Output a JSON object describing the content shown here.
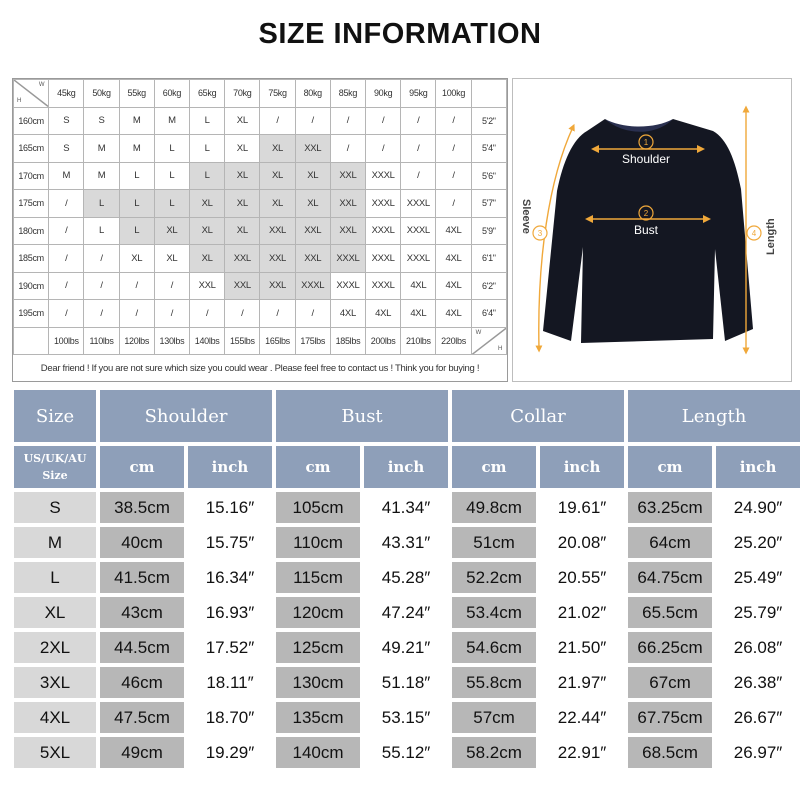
{
  "title": "SIZE INFORMATION",
  "grid": {
    "corner_h": "H",
    "corner_w": "W",
    "weights_kg": [
      "45kg",
      "50kg",
      "55kg",
      "60kg",
      "65kg",
      "70kg",
      "75kg",
      "80kg",
      "85kg",
      "90kg",
      "95kg",
      "100kg"
    ],
    "weights_lbs": [
      "100lbs",
      "110lbs",
      "120lbs",
      "130lbs",
      "140lbs",
      "155lbs",
      "165lbs",
      "175lbs",
      "185lbs",
      "200lbs",
      "210lbs",
      "220lbs"
    ],
    "rows": [
      {
        "cm": "160cm",
        "ft": "5'2\"",
        "cells": [
          "S",
          "S",
          "M",
          "M",
          "L",
          "XL",
          "/",
          "/",
          "/",
          "/",
          "/",
          "/"
        ]
      },
      {
        "cm": "165cm",
        "ft": "5'4\"",
        "cells": [
          "S",
          "M",
          "M",
          "L",
          "L",
          "XL",
          "XL",
          "XXL",
          "/",
          "/",
          "/",
          "/"
        ]
      },
      {
        "cm": "170cm",
        "ft": "5'6\"",
        "cells": [
          "M",
          "M",
          "L",
          "L",
          "L",
          "XL",
          "XL",
          "XL",
          "XXL",
          "XXXL",
          "/",
          "/"
        ]
      },
      {
        "cm": "175cm",
        "ft": "5'7\"",
        "cells": [
          "/",
          "L",
          "L",
          "L",
          "XL",
          "XL",
          "XL",
          "XL",
          "XXL",
          "XXXL",
          "XXXL",
          "/"
        ]
      },
      {
        "cm": "180cm",
        "ft": "5'9\"",
        "cells": [
          "/",
          "L",
          "L",
          "XL",
          "XL",
          "XL",
          "XXL",
          "XXL",
          "XXL",
          "XXXL",
          "XXXL",
          "4XL"
        ]
      },
      {
        "cm": "185cm",
        "ft": "6'1\"",
        "cells": [
          "/",
          "/",
          "XL",
          "XL",
          "XL",
          "XXL",
          "XXL",
          "XXL",
          "XXXL",
          "XXXL",
          "XXXL",
          "4XL"
        ]
      },
      {
        "cm": "190cm",
        "ft": "6'2\"",
        "cells": [
          "/",
          "/",
          "/",
          "/",
          "XXL",
          "XXL",
          "XXL",
          "XXXL",
          "XXXL",
          "XXXL",
          "4XL",
          "4XL"
        ]
      },
      {
        "cm": "195cm",
        "ft": "6'4\"",
        "cells": [
          "/",
          "/",
          "/",
          "/",
          "/",
          "/",
          "/",
          "/",
          "4XL",
          "4XL",
          "4XL",
          "4XL"
        ]
      }
    ],
    "note": "Dear friend ! If you are not sure which size you could wear . Please feel free to contact us ! Think you for buying !"
  },
  "diagram": {
    "shoulder_num": "1",
    "shoulder_label": "Shoulder",
    "bust_num": "2",
    "bust_label": "Bust",
    "sleeve_num": "3",
    "sleeve_label": "Sleeve",
    "length_num": "4",
    "length_label": "Length",
    "garment_color": "#141722",
    "arrow_color": "#f0a83a"
  },
  "size_table": {
    "headers": {
      "size": "Size",
      "shoulder": "Shoulder",
      "bust": "Bust",
      "collar": "Collar",
      "length": "Length",
      "region_line1": "US/UK/AU",
      "region_line2": "Size",
      "cm": "cm",
      "inch": "inch"
    },
    "rows": [
      [
        "S",
        "38.5cm",
        "15.16″",
        "105cm",
        "41.34″",
        "49.8cm",
        "19.61″",
        "63.25cm",
        "24.90″"
      ],
      [
        "M",
        "40cm",
        "15.75″",
        "110cm",
        "43.31″",
        "51cm",
        "20.08″",
        "64cm",
        "25.20″"
      ],
      [
        "L",
        "41.5cm",
        "16.34″",
        "115cm",
        "45.28″",
        "52.2cm",
        "20.55″",
        "64.75cm",
        "25.49″"
      ],
      [
        "XL",
        "43cm",
        "16.93″",
        "120cm",
        "47.24″",
        "53.4cm",
        "21.02″",
        "65.5cm",
        "25.79″"
      ],
      [
        "2XL",
        "44.5cm",
        "17.52″",
        "125cm",
        "49.21″",
        "54.6cm",
        "21.50″",
        "66.25cm",
        "26.08″"
      ],
      [
        "3XL",
        "46cm",
        "18.11″",
        "130cm",
        "51.18″",
        "55.8cm",
        "21.97″",
        "67cm",
        "26.38″"
      ],
      [
        "4XL",
        "47.5cm",
        "18.70″",
        "135cm",
        "53.15″",
        "57cm",
        "22.44″",
        "67.75cm",
        "26.67″"
      ],
      [
        "5XL",
        "49cm",
        "19.29″",
        "140cm",
        "55.12″",
        "58.2cm",
        "22.91″",
        "68.5cm",
        "26.97″"
      ]
    ],
    "header_color": "#8e9fb9",
    "cm_cell_color": "#b7b7b7",
    "size_cell_color": "#d8d8d8"
  }
}
